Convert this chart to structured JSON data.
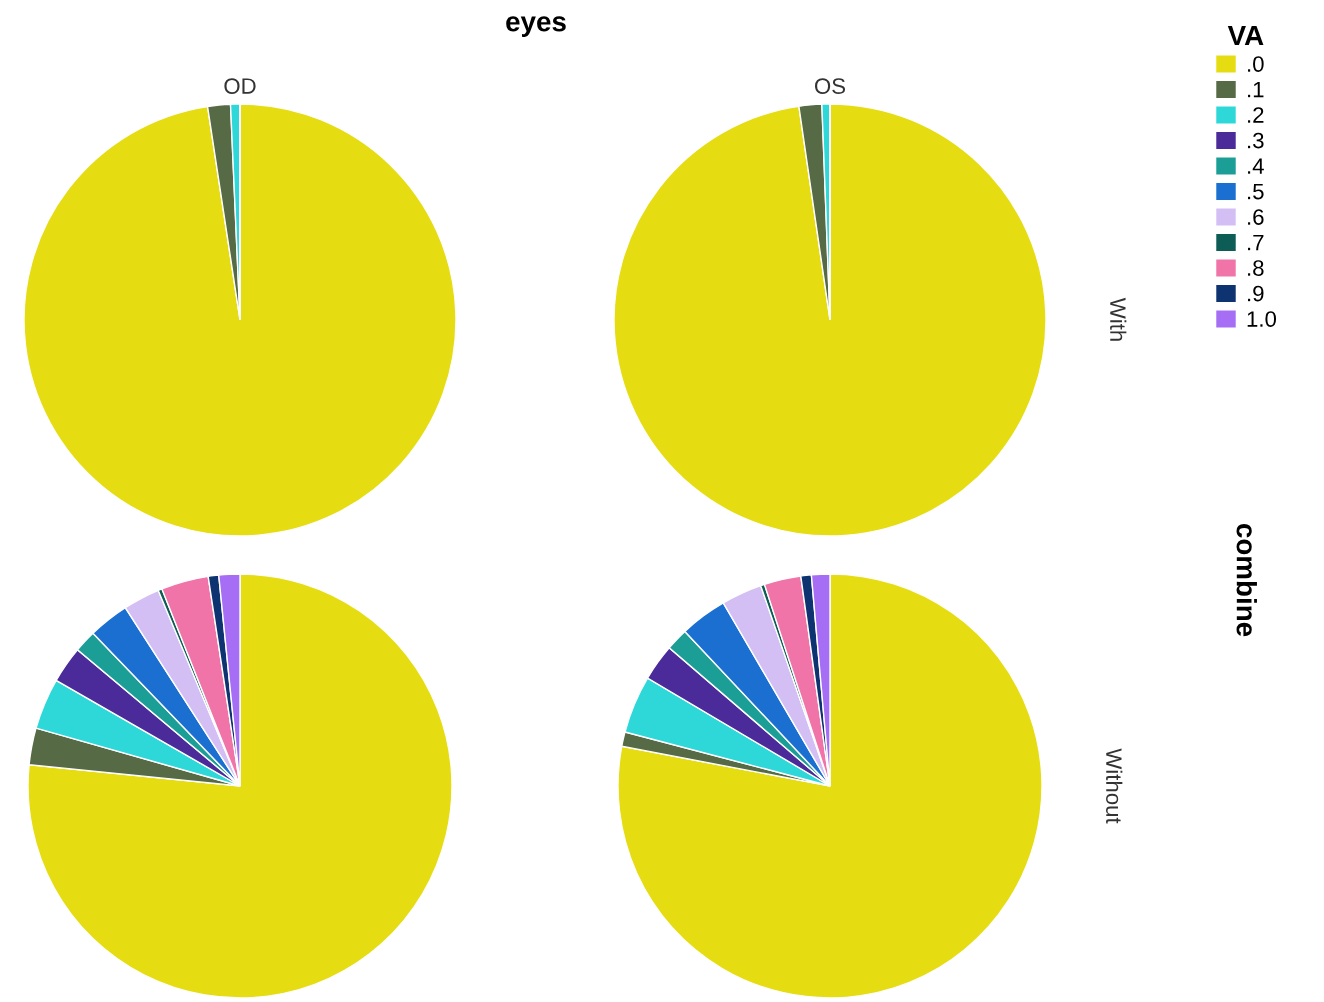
{
  "chart_data": [
    {
      "type": "pie",
      "title": "OD",
      "annotations": [
        "eyes",
        "combine"
      ],
      "legend": "right",
      "legend_title": "VA",
      "categories": [
        ".0",
        ".1",
        ".2",
        ".3",
        ".4",
        ".5",
        ".6",
        ".7",
        ".8",
        ".9",
        "1.0"
      ],
      "values": [
        97.6,
        1.7,
        0.7,
        0,
        0,
        0,
        0,
        0,
        0,
        0,
        0
      ],
      "colors": [
        "#e6dc12",
        "#566b45",
        "#2ed8d8",
        "#4b2a9a",
        "#1a9e96",
        "#1a6fd1",
        "#d4bff5",
        "#0d5c55",
        "#f074a8",
        "#0d3470",
        "#a56ef5"
      ]
    },
    {
      "type": "pie",
      "title": "OS",
      "y2label": "With",
      "values": [
        97.7,
        1.7,
        0.6,
        0,
        0,
        0,
        0,
        0,
        0,
        0,
        0
      ],
      "colors": [
        "#e6dc12",
        "#566b45",
        "#2ed8d8",
        "#4b2a9a",
        "#1a9e96",
        "#1a6fd1",
        "#d4bff5",
        "#0d5c55",
        "#f074a8",
        "#0d3470",
        "#a56ef5"
      ]
    },
    {
      "type": "pie",
      "values": [
        76.6,
        2.8,
        3.9,
        2.8,
        1.7,
        3.1,
        2.8,
        0.3,
        3.6,
        0.8,
        1.6
      ],
      "colors": [
        "#e6dc12",
        "#566b45",
        "#2ed8d8",
        "#4b2a9a",
        "#1a9e96",
        "#1a6fd1",
        "#d4bff5",
        "#0d5c55",
        "#f074a8",
        "#0d3470",
        "#a56ef5"
      ]
    },
    {
      "type": "pie",
      "y2label": "Without",
      "values": [
        78.0,
        1.1,
        4.4,
        2.8,
        1.7,
        3.6,
        3.1,
        0.3,
        2.8,
        0.8,
        1.4
      ],
      "colors": [
        "#e6dc12",
        "#566b45",
        "#2ed8d8",
        "#4b2a9a",
        "#1a9e96",
        "#1a6fd1",
        "#d4bff5",
        "#0d5c55",
        "#f074a8",
        "#0d3470",
        "#a56ef5"
      ]
    }
  ]
}
